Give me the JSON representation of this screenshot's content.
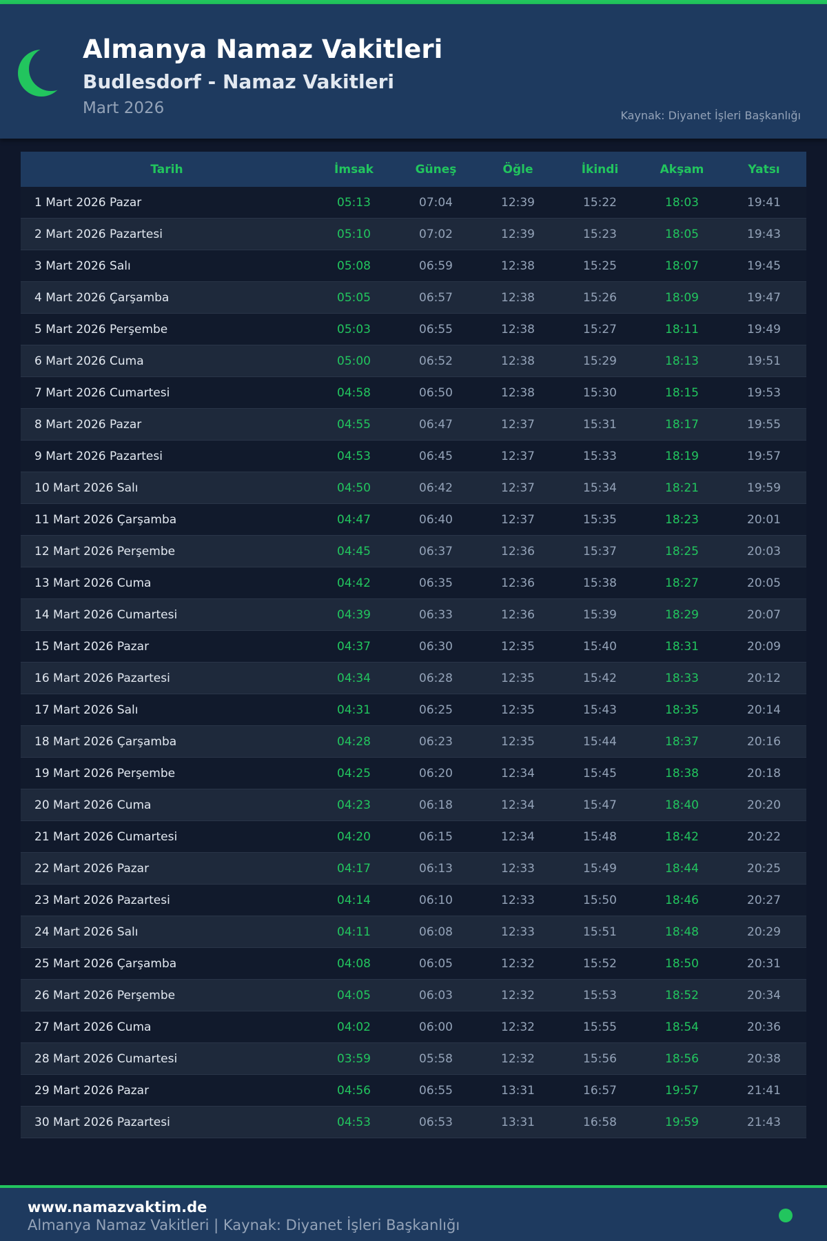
{
  "header": {
    "title": "Almanya Namaz Vakitleri",
    "subtitle": "Budlesdorf - Namaz Vakitleri",
    "month": "Mart 2026",
    "source": "Kaynak: Diyanet İşleri Başkanlığı"
  },
  "colors": {
    "accent": "#22c55e",
    "header_bg": "#1e3a5f",
    "page_bg": "#0f172a"
  },
  "icons": {
    "logo": "crescent-moon-icon",
    "footer": "green-dot-icon"
  },
  "table": {
    "columns": [
      "Tarih",
      "İmsak",
      "Güneş",
      "Öğle",
      "İkindi",
      "Akşam",
      "Yatsı"
    ],
    "rows": [
      [
        "1 Mart 2026 Pazar",
        "05:13",
        "07:04",
        "12:39",
        "15:22",
        "18:03",
        "19:41"
      ],
      [
        "2 Mart 2026 Pazartesi",
        "05:10",
        "07:02",
        "12:39",
        "15:23",
        "18:05",
        "19:43"
      ],
      [
        "3 Mart 2026 Salı",
        "05:08",
        "06:59",
        "12:38",
        "15:25",
        "18:07",
        "19:45"
      ],
      [
        "4 Mart 2026 Çarşamba",
        "05:05",
        "06:57",
        "12:38",
        "15:26",
        "18:09",
        "19:47"
      ],
      [
        "5 Mart 2026 Perşembe",
        "05:03",
        "06:55",
        "12:38",
        "15:27",
        "18:11",
        "19:49"
      ],
      [
        "6 Mart 2026 Cuma",
        "05:00",
        "06:52",
        "12:38",
        "15:29",
        "18:13",
        "19:51"
      ],
      [
        "7 Mart 2026 Cumartesi",
        "04:58",
        "06:50",
        "12:38",
        "15:30",
        "18:15",
        "19:53"
      ],
      [
        "8 Mart 2026 Pazar",
        "04:55",
        "06:47",
        "12:37",
        "15:31",
        "18:17",
        "19:55"
      ],
      [
        "9 Mart 2026 Pazartesi",
        "04:53",
        "06:45",
        "12:37",
        "15:33",
        "18:19",
        "19:57"
      ],
      [
        "10 Mart 2026 Salı",
        "04:50",
        "06:42",
        "12:37",
        "15:34",
        "18:21",
        "19:59"
      ],
      [
        "11 Mart 2026 Çarşamba",
        "04:47",
        "06:40",
        "12:37",
        "15:35",
        "18:23",
        "20:01"
      ],
      [
        "12 Mart 2026 Perşembe",
        "04:45",
        "06:37",
        "12:36",
        "15:37",
        "18:25",
        "20:03"
      ],
      [
        "13 Mart 2026 Cuma",
        "04:42",
        "06:35",
        "12:36",
        "15:38",
        "18:27",
        "20:05"
      ],
      [
        "14 Mart 2026 Cumartesi",
        "04:39",
        "06:33",
        "12:36",
        "15:39",
        "18:29",
        "20:07"
      ],
      [
        "15 Mart 2026 Pazar",
        "04:37",
        "06:30",
        "12:35",
        "15:40",
        "18:31",
        "20:09"
      ],
      [
        "16 Mart 2026 Pazartesi",
        "04:34",
        "06:28",
        "12:35",
        "15:42",
        "18:33",
        "20:12"
      ],
      [
        "17 Mart 2026 Salı",
        "04:31",
        "06:25",
        "12:35",
        "15:43",
        "18:35",
        "20:14"
      ],
      [
        "18 Mart 2026 Çarşamba",
        "04:28",
        "06:23",
        "12:35",
        "15:44",
        "18:37",
        "20:16"
      ],
      [
        "19 Mart 2026 Perşembe",
        "04:25",
        "06:20",
        "12:34",
        "15:45",
        "18:38",
        "20:18"
      ],
      [
        "20 Mart 2026 Cuma",
        "04:23",
        "06:18",
        "12:34",
        "15:47",
        "18:40",
        "20:20"
      ],
      [
        "21 Mart 2026 Cumartesi",
        "04:20",
        "06:15",
        "12:34",
        "15:48",
        "18:42",
        "20:22"
      ],
      [
        "22 Mart 2026 Pazar",
        "04:17",
        "06:13",
        "12:33",
        "15:49",
        "18:44",
        "20:25"
      ],
      [
        "23 Mart 2026 Pazartesi",
        "04:14",
        "06:10",
        "12:33",
        "15:50",
        "18:46",
        "20:27"
      ],
      [
        "24 Mart 2026 Salı",
        "04:11",
        "06:08",
        "12:33",
        "15:51",
        "18:48",
        "20:29"
      ],
      [
        "25 Mart 2026 Çarşamba",
        "04:08",
        "06:05",
        "12:32",
        "15:52",
        "18:50",
        "20:31"
      ],
      [
        "26 Mart 2026 Perşembe",
        "04:05",
        "06:03",
        "12:32",
        "15:53",
        "18:52",
        "20:34"
      ],
      [
        "27 Mart 2026 Cuma",
        "04:02",
        "06:00",
        "12:32",
        "15:55",
        "18:54",
        "20:36"
      ],
      [
        "28 Mart 2026 Cumartesi",
        "03:59",
        "05:58",
        "12:32",
        "15:56",
        "18:56",
        "20:38"
      ],
      [
        "29 Mart 2026 Pazar",
        "04:56",
        "06:55",
        "13:31",
        "16:57",
        "19:57",
        "21:41"
      ],
      [
        "30 Mart 2026 Pazartesi",
        "04:53",
        "06:53",
        "13:31",
        "16:58",
        "19:59",
        "21:43"
      ]
    ]
  },
  "footer": {
    "site": "www.namazvaktim.de",
    "text": "Almanya Namaz Vakitleri | Kaynak: Diyanet İşleri Başkanlığı"
  }
}
